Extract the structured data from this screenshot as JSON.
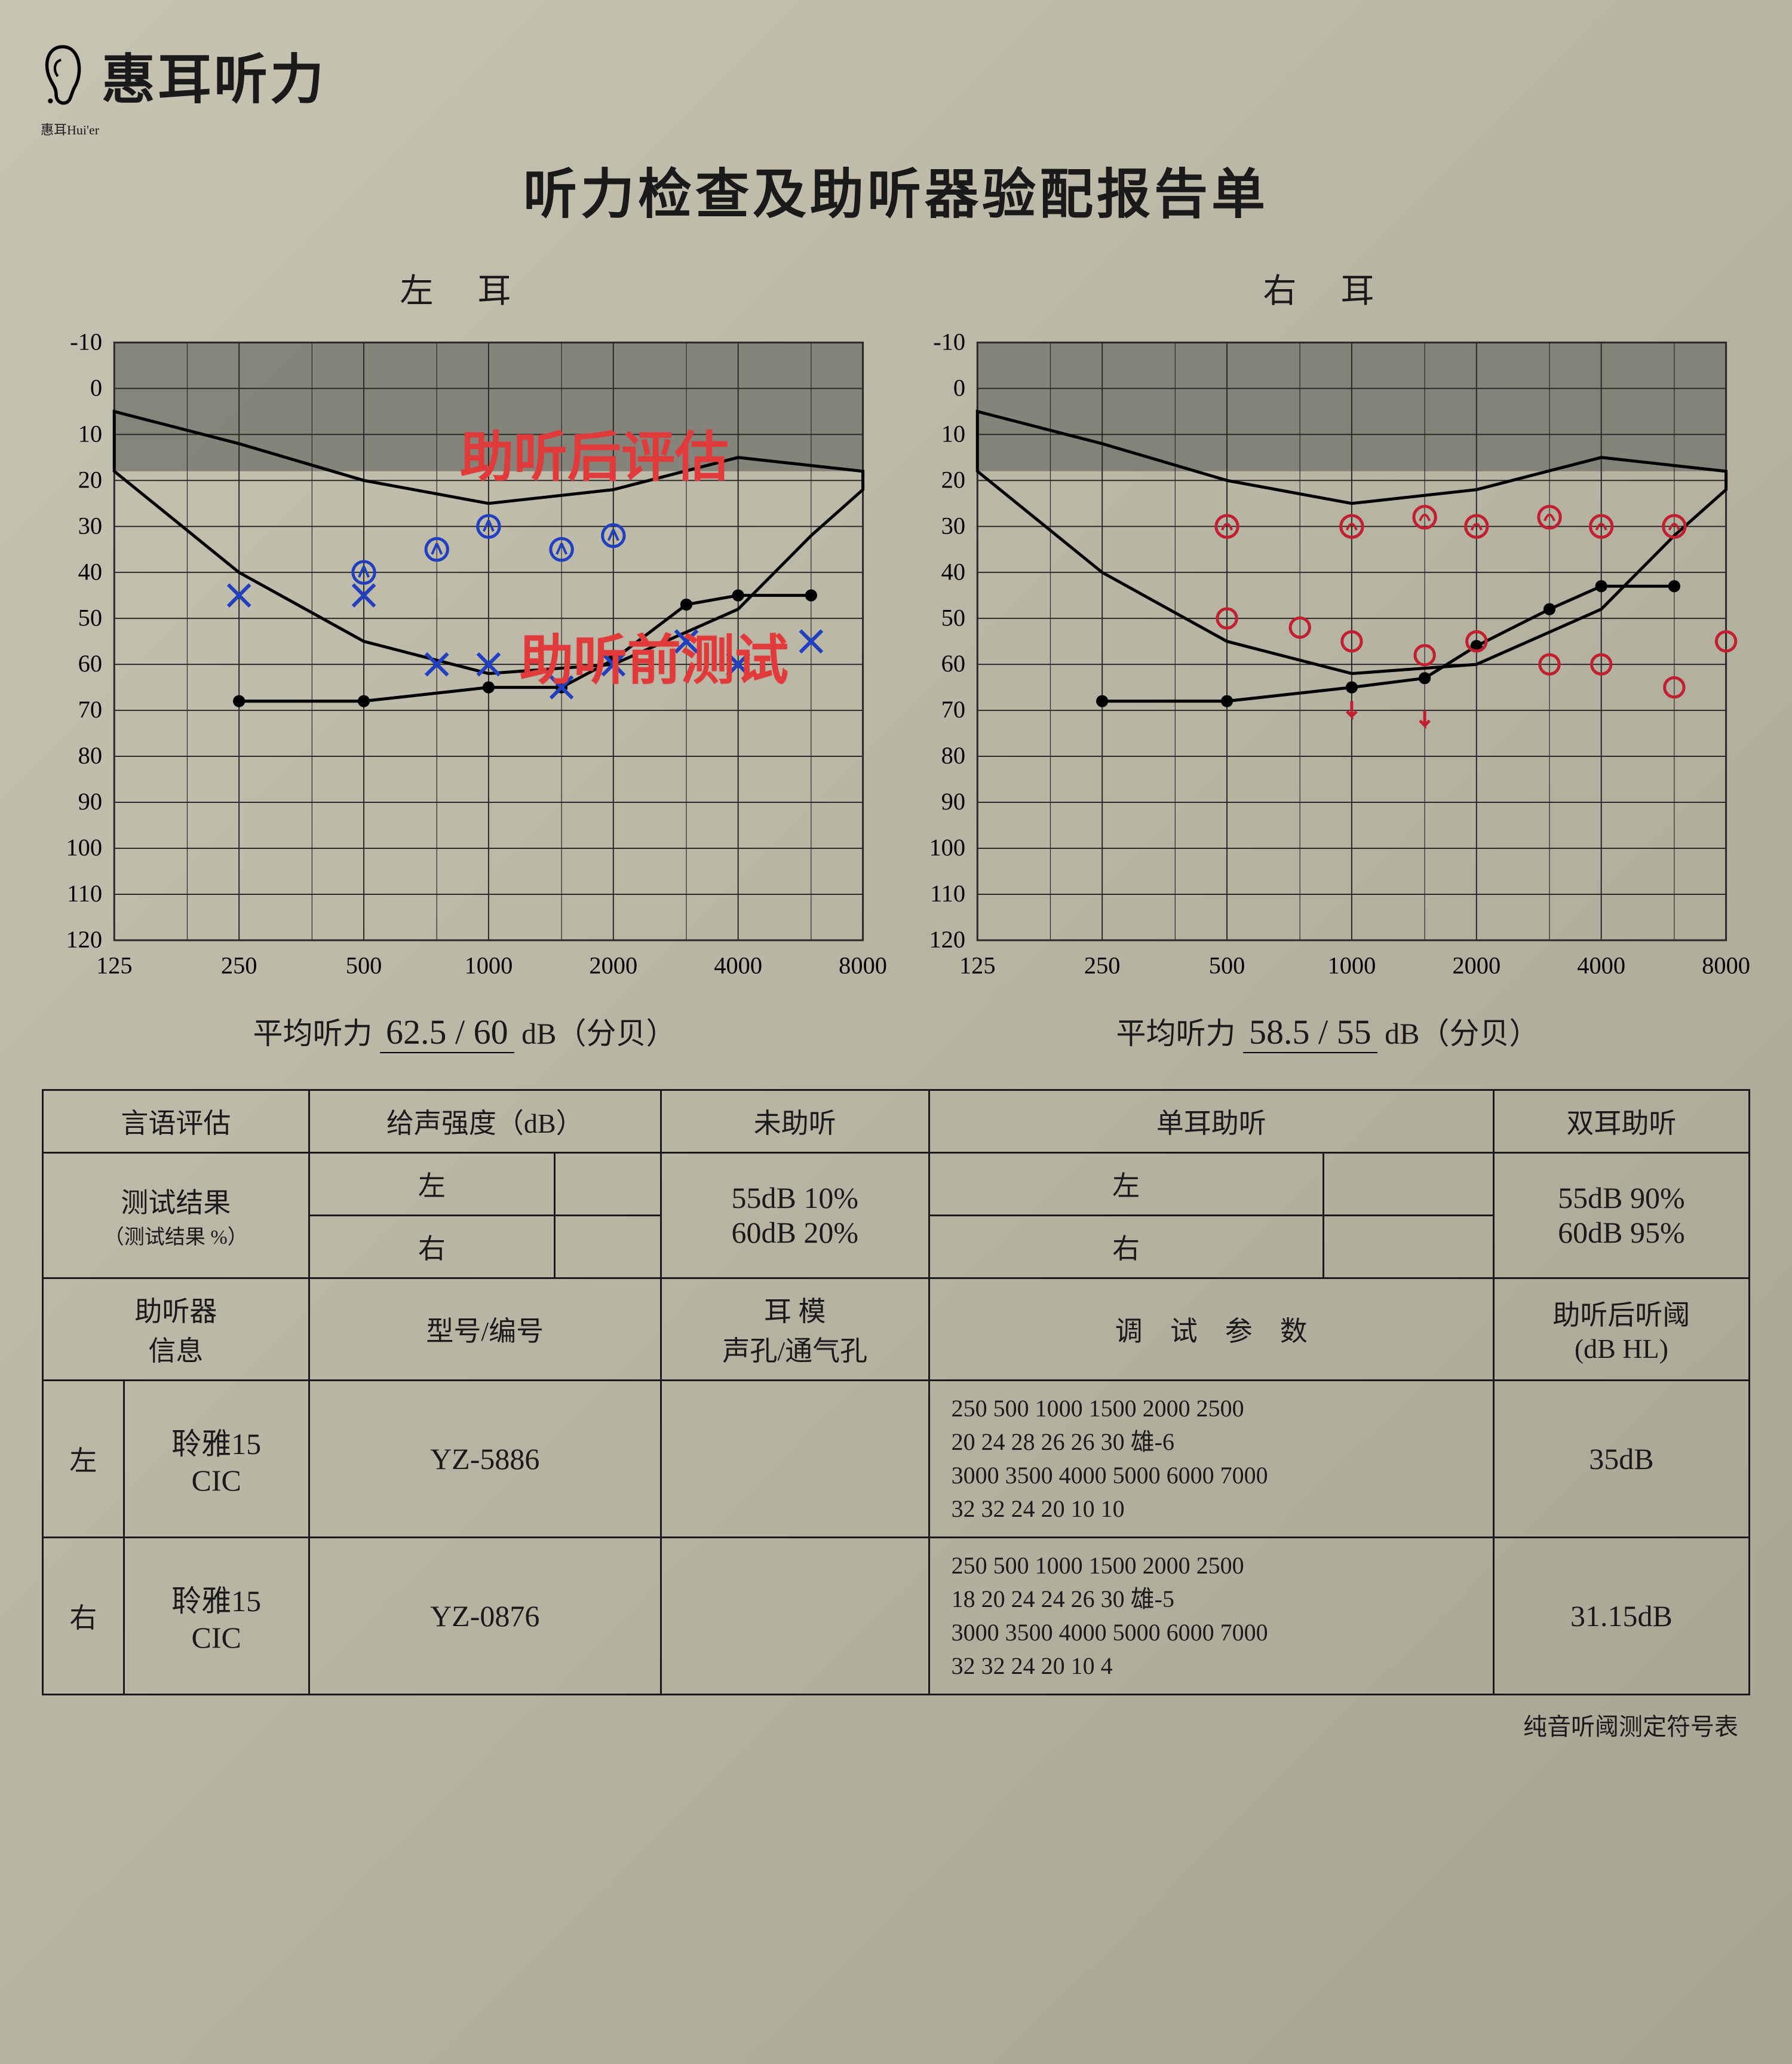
{
  "brand": "惠耳听力",
  "brand_sub": "惠耳Hui'er",
  "title": "听力检查及助听器验配报告单",
  "annotation_top": "助听后评估",
  "annotation_bottom": "助听前测试",
  "annotation_color": "#e03a3a",
  "left_chart": {
    "title": "左 耳",
    "type": "audiogram",
    "x_freqs_hz": [
      125,
      250,
      500,
      1000,
      2000,
      4000,
      8000
    ],
    "x_labels": [
      "125",
      "250",
      "500",
      "1000",
      "2000",
      "4000",
      "8000"
    ],
    "y_ticks": [
      -10,
      0,
      10,
      20,
      30,
      40,
      50,
      60,
      70,
      80,
      90,
      100,
      110,
      120
    ],
    "ylim": [
      -10,
      120
    ],
    "grid_color": "#2a2a2a",
    "shade_color": "#7a7a72",
    "banana_stroke": "#000000",
    "curve_color_black": "#000000",
    "mark_color_blue": "#2040c0",
    "series_black_dots": [
      {
        "f": 250,
        "db": 68
      },
      {
        "f": 500,
        "db": 68
      },
      {
        "f": 1000,
        "db": 65
      },
      {
        "f": 1500,
        "db": 65
      },
      {
        "f": 2000,
        "db": 59
      },
      {
        "f": 3000,
        "db": 47
      },
      {
        "f": 4000,
        "db": 45
      },
      {
        "f": 6000,
        "db": 45
      }
    ],
    "series_blue_x": [
      {
        "f": 250,
        "db": 45
      },
      {
        "f": 500,
        "db": 45
      },
      {
        "f": 750,
        "db": 60
      },
      {
        "f": 1000,
        "db": 60
      },
      {
        "f": 1500,
        "db": 65
      },
      {
        "f": 2000,
        "db": 60
      },
      {
        "f": 3000,
        "db": 55
      },
      {
        "f": 4000,
        "db": 60
      },
      {
        "f": 6000,
        "db": 55
      }
    ],
    "series_blue_aided": [
      {
        "f": 500,
        "db": 40
      },
      {
        "f": 750,
        "db": 35
      },
      {
        "f": 1000,
        "db": 30
      },
      {
        "f": 1500,
        "db": 35
      },
      {
        "f": 2000,
        "db": 32
      }
    ],
    "avg_label": "平均听力",
    "avg_value": "62.5 / 60",
    "avg_unit": "dB（分贝）"
  },
  "right_chart": {
    "title": "右 耳",
    "type": "audiogram",
    "x_freqs_hz": [
      125,
      250,
      500,
      1000,
      2000,
      4000,
      8000
    ],
    "x_labels": [
      "125",
      "250",
      "500",
      "1000",
      "2000",
      "4000",
      "8000"
    ],
    "y_ticks": [
      -10,
      0,
      10,
      20,
      30,
      40,
      50,
      60,
      70,
      80,
      90,
      100,
      110,
      120
    ],
    "ylim": [
      -10,
      120
    ],
    "grid_color": "#2a2a2a",
    "shade_color": "#7a7a72",
    "banana_stroke": "#000000",
    "curve_color_black": "#000000",
    "mark_color_red": "#c02030",
    "series_black_dots": [
      {
        "f": 250,
        "db": 68
      },
      {
        "f": 500,
        "db": 68
      },
      {
        "f": 1000,
        "db": 65
      },
      {
        "f": 1500,
        "db": 63
      },
      {
        "f": 2000,
        "db": 56
      },
      {
        "f": 3000,
        "db": 48
      },
      {
        "f": 4000,
        "db": 43
      },
      {
        "f": 6000,
        "db": 43
      }
    ],
    "series_red_o": [
      {
        "f": 500,
        "db": 50
      },
      {
        "f": 750,
        "db": 52
      },
      {
        "f": 1000,
        "db": 55
      },
      {
        "f": 1500,
        "db": 58
      },
      {
        "f": 2000,
        "db": 55
      },
      {
        "f": 3000,
        "db": 60
      },
      {
        "f": 4000,
        "db": 60
      },
      {
        "f": 6000,
        "db": 65
      },
      {
        "f": 8000,
        "db": 55
      }
    ],
    "series_red_aided": [
      {
        "f": 500,
        "db": 30
      },
      {
        "f": 1000,
        "db": 30
      },
      {
        "f": 1500,
        "db": 28
      },
      {
        "f": 2000,
        "db": 30
      },
      {
        "f": 3000,
        "db": 28
      },
      {
        "f": 4000,
        "db": 30
      },
      {
        "f": 6000,
        "db": 30
      }
    ],
    "avg_label": "平均听力",
    "avg_value": "58.5 / 55",
    "avg_unit": "dB（分贝）"
  },
  "assess_table": {
    "h_speech": "言语评估",
    "h_intensity": "给声强度（dB）",
    "h_unaided": "未助听",
    "h_mono": "单耳助听",
    "h_bino": "双耳助听",
    "h_results": "测试结果",
    "h_results_sub": "（测试结果 %）",
    "h_left": "左",
    "h_right": "右",
    "unaided_val": "55dB 10%\n60dB 20%",
    "bino_val": "55dB 90%\n60dB 95%",
    "h_aid_info": "助听器\n信息",
    "h_model": "型号/编号",
    "h_earmold": "耳 模\n声孔/通气孔",
    "h_params": "调　试　参　数",
    "h_post_thr": "助听后听阈\n(dB HL)",
    "left_aid_name": "聆雅15\nCIC",
    "left_aid_model": "YZ-5886",
    "left_params": "250 500 1000 1500 2000 2500\n20 24 28 26 26 30  雄-6\n3000 3500 4000 5000 6000 7000\n32 32 24 20 10 10",
    "left_post": "35dB",
    "right_aid_name": "聆雅15\nCIC",
    "right_aid_model": "YZ-0876",
    "right_params": "250 500 1000 1500 2000 2500\n18 20 24 24 26 30  雄-5\n3000 3500 4000 5000 6000 7000\n32 32 24 20 10 4",
    "right_post": "31.15dB"
  },
  "footer": "纯音听阈测定符号表"
}
